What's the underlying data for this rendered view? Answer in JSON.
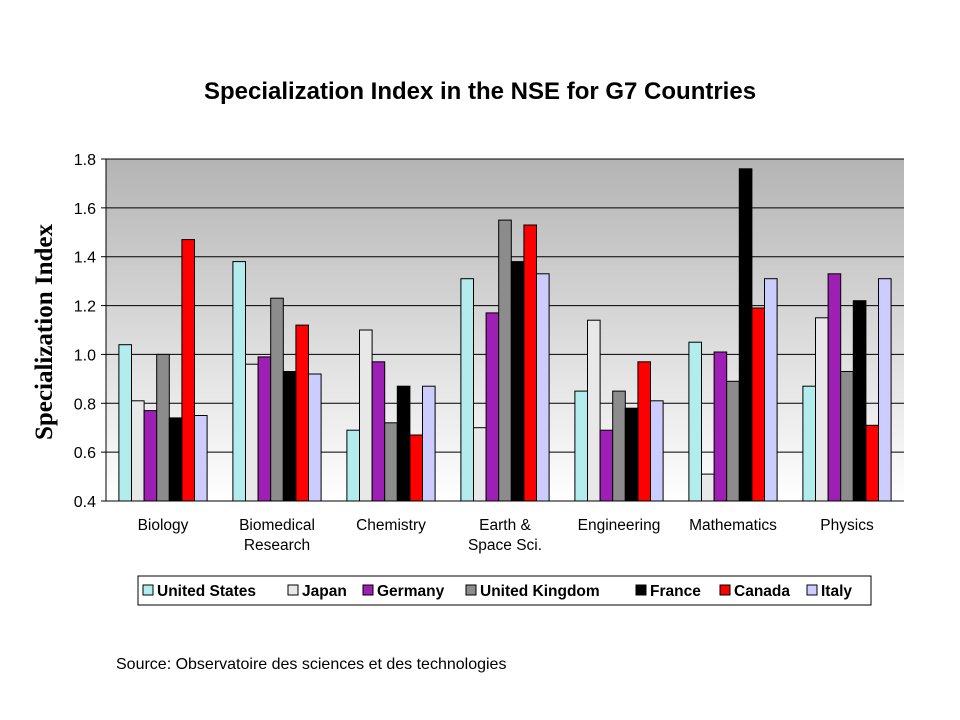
{
  "chart_data": {
    "type": "bar",
    "title": "Specialization Index in the NSE for G7 Countries",
    "xlabel": "",
    "ylabel": "Specialization Index",
    "ylim": [
      0.4,
      1.8
    ],
    "yticks": [
      "0.4",
      "0.6",
      "0.8",
      "1.0",
      "1.2",
      "1.4",
      "1.6",
      "1.8"
    ],
    "grid": true,
    "legend_position": "bottom",
    "categories": [
      [
        "Biology"
      ],
      [
        "Biomedical",
        "Research"
      ],
      [
        "Chemistry"
      ],
      [
        "Earth &",
        "Space Sci."
      ],
      [
        "Engineering"
      ],
      [
        "Mathematics"
      ],
      [
        "Physics"
      ]
    ],
    "series": [
      {
        "name": "United States",
        "color": "#b3ecec",
        "values": [
          1.04,
          1.38,
          0.69,
          1.31,
          0.85,
          1.05,
          0.87
        ]
      },
      {
        "name": "Japan",
        "color": "#e8e8e8",
        "values": [
          0.81,
          0.96,
          1.1,
          0.7,
          1.14,
          0.51,
          1.15
        ]
      },
      {
        "name": "Germany",
        "color": "#9e1fb3",
        "values": [
          0.77,
          0.99,
          0.97,
          1.17,
          0.69,
          1.01,
          1.33
        ]
      },
      {
        "name": "United Kingdom",
        "color": "#8c8c8c",
        "values": [
          1.0,
          1.23,
          0.72,
          1.55,
          0.85,
          0.89,
          0.93
        ]
      },
      {
        "name": "France",
        "color": "#000000",
        "values": [
          0.74,
          0.93,
          0.87,
          1.38,
          0.78,
          1.76,
          1.22
        ]
      },
      {
        "name": "Canada",
        "color": "#ff0000",
        "values": [
          1.47,
          1.12,
          0.67,
          1.53,
          0.97,
          1.19,
          0.71
        ]
      },
      {
        "name": "Italy",
        "color": "#ccccff",
        "values": [
          0.75,
          0.92,
          0.87,
          1.33,
          0.81,
          1.31,
          1.31
        ]
      }
    ]
  },
  "source": "Source: Observatoire des sciences et des technologies"
}
